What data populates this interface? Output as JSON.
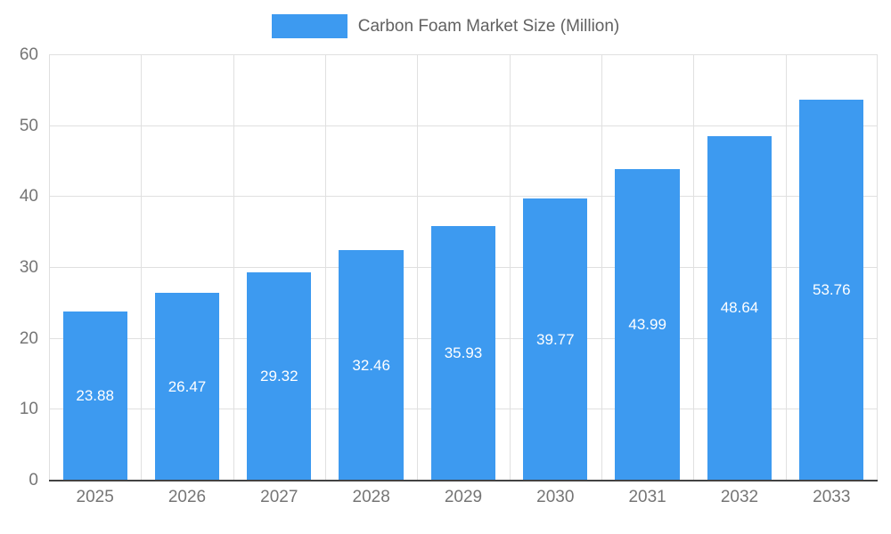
{
  "chart_data": {
    "type": "bar",
    "title": "Carbon Foam Market Size (Million)",
    "categories": [
      "2025",
      "2026",
      "2027",
      "2028",
      "2029",
      "2030",
      "2031",
      "2032",
      "2033"
    ],
    "values": [
      23.88,
      26.47,
      29.32,
      32.46,
      35.93,
      39.77,
      43.99,
      48.64,
      53.76
    ],
    "value_labels": [
      "23.88",
      "26.47",
      "29.32",
      "32.46",
      "35.93",
      "39.77",
      "43.99",
      "48.64",
      "53.76"
    ],
    "xlabel": "",
    "ylabel": "",
    "ylim": [
      0,
      60
    ],
    "yticks": [
      0,
      10,
      20,
      30,
      40,
      50,
      60
    ],
    "grid": true,
    "legend_position": "top",
    "colors": {
      "bar": "#3D9AF0",
      "bar_label": "#FFFFFF",
      "axis_text": "#757575",
      "grid": "#E0E0E0",
      "axis_line": "#424242",
      "legend_text": "#616161"
    }
  }
}
